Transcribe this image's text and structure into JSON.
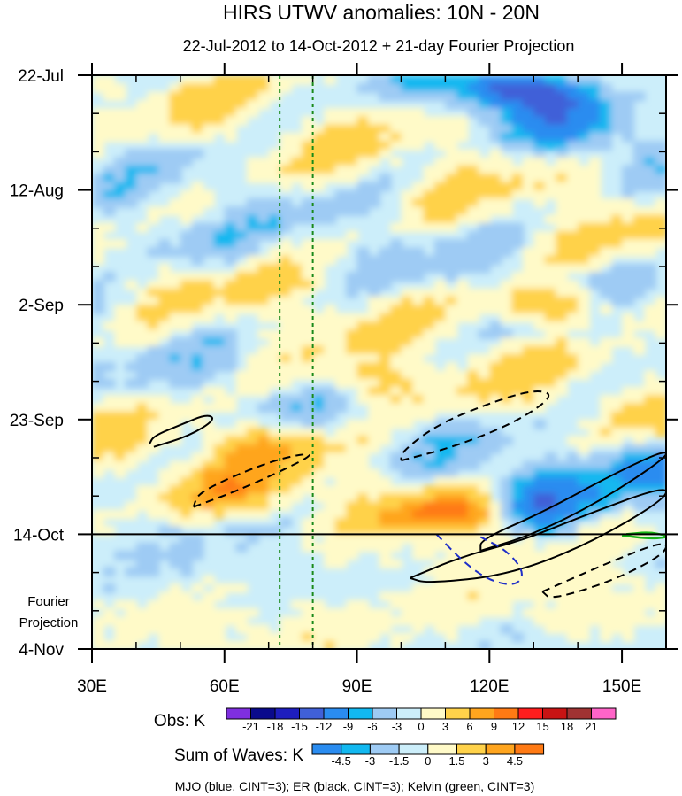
{
  "chart_data": {
    "type": "heatmap",
    "title": "HIRS UTWV anomalies: 10N - 20N",
    "subtitle": "22-Jul-2012 to 14-Oct-2012 + 21-day Fourier Projection",
    "xlabel": "",
    "ylabel": "",
    "xlim": [
      30,
      160
    ],
    "x_ticks": [
      {
        "value": 30,
        "label": "30E"
      },
      {
        "value": 60,
        "label": "60E"
      },
      {
        "value": 90,
        "label": "90E"
      },
      {
        "value": 120,
        "label": "120E"
      },
      {
        "value": 150,
        "label": "150E"
      }
    ],
    "ylim_days": [
      0,
      105
    ],
    "y_ticks": [
      {
        "day": 0,
        "label": "22-Jul"
      },
      {
        "day": 21,
        "label": "12-Aug"
      },
      {
        "day": 42,
        "label": "2-Sep"
      },
      {
        "day": 63,
        "label": "23-Sep"
      },
      {
        "day": 84,
        "label": "14-Oct"
      },
      {
        "day": 105,
        "label": "4-Nov"
      }
    ],
    "forecast_start_day": 84,
    "forecast_label_lines": [
      "Fourier",
      "Projection"
    ],
    "reference_lines_lon": [
      72.5,
      80
    ],
    "obs_colorbar": {
      "title": "Obs: K",
      "levels": [
        "-21",
        "-18",
        "-15",
        "-12",
        "-9",
        "-6",
        "-3",
        "0",
        "3",
        "6",
        "9",
        "12",
        "15",
        "18",
        "21"
      ],
      "colors": [
        "#7f2fe0",
        "#0a0a8c",
        "#1e1ebe",
        "#4060d8",
        "#2a8cf0",
        "#12b8f0",
        "#9ecbf4",
        "#cceefa",
        "#fffac8",
        "#ffd24a",
        "#ffa51e",
        "#ff7a14",
        "#ff1e1e",
        "#c81414",
        "#a03232",
        "#ff64c8"
      ]
    },
    "waves_colorbar": {
      "title": "Sum of Waves: K",
      "levels": [
        "-4.5",
        "-3",
        "-1.5",
        "0",
        "1.5",
        "3",
        "4.5"
      ],
      "colors": [
        "#2a8cf0",
        "#12b8f0",
        "#9ecbf4",
        "#cceefa",
        "#fffac8",
        "#ffd24a",
        "#ffa51e",
        "#ff7a14"
      ]
    },
    "contours": [
      {
        "wave": "ER",
        "sign": "positive",
        "points": [
          [
            44,
            68
          ],
          [
            52,
            66
          ],
          [
            58,
            63
          ],
          [
            56,
            62
          ],
          [
            50,
            64
          ],
          [
            44,
            66
          ],
          [
            43,
            67.5
          ]
        ]
      },
      {
        "wave": "ER",
        "sign": "negative",
        "points": [
          [
            53,
            79
          ],
          [
            63,
            76
          ],
          [
            74,
            72
          ],
          [
            81,
            69
          ],
          [
            73,
            70
          ],
          [
            63,
            73
          ],
          [
            54,
            76.5
          ],
          [
            53,
            79
          ]
        ]
      },
      {
        "wave": "ER",
        "sign": "negative",
        "points": [
          [
            100,
            70.5
          ],
          [
            112,
            68
          ],
          [
            126,
            63.5
          ],
          [
            135,
            58.5
          ],
          [
            130,
            57.5
          ],
          [
            120,
            60
          ],
          [
            108,
            64
          ],
          [
            100,
            69
          ],
          [
            100,
            70.5
          ]
        ]
      },
      {
        "wave": "ER",
        "sign": "positive",
        "points": [
          [
            118,
            87
          ],
          [
            130,
            84
          ],
          [
            145,
            78
          ],
          [
            160,
            70
          ],
          [
            160,
            68.5
          ],
          [
            148,
            73
          ],
          [
            132,
            80
          ],
          [
            118,
            85
          ],
          [
            118,
            87
          ]
        ]
      },
      {
        "wave": "ER",
        "sign": "positive",
        "points": [
          [
            102,
            92
          ],
          [
            114,
            88
          ],
          [
            128,
            85
          ],
          [
            140,
            81
          ],
          [
            160,
            75
          ],
          [
            160,
            77.5
          ],
          [
            142,
            86
          ],
          [
            124,
            91.5
          ],
          [
            106,
            93
          ],
          [
            102,
            92
          ]
        ]
      },
      {
        "wave": "ER",
        "sign": "negative",
        "points": [
          [
            132,
            94.5
          ],
          [
            146,
            89.5
          ],
          [
            160,
            85
          ],
          [
            160,
            87.5
          ],
          [
            148,
            92.5
          ],
          [
            134,
            96
          ],
          [
            132,
            94.5
          ]
        ]
      },
      {
        "wave": "MJO",
        "sign": "negative",
        "points": [
          [
            108,
            84
          ],
          [
            114,
            89
          ],
          [
            120,
            92.5
          ],
          [
            126,
            93.5
          ],
          [
            128,
            91
          ],
          [
            124,
            87
          ],
          [
            118,
            84.5
          ]
        ]
      },
      {
        "wave": "Kelvin",
        "sign": "positive",
        "points": [
          [
            150,
            84.2
          ],
          [
            156,
            84.8
          ],
          [
            160,
            84.6
          ],
          [
            160,
            84.2
          ],
          [
            156,
            83.6
          ],
          [
            151,
            84
          ]
        ]
      }
    ],
    "legend_caption": "MJO (blue, CINT=3); ER (black, CINT=3); Kelvin (green, CINT=3)"
  }
}
